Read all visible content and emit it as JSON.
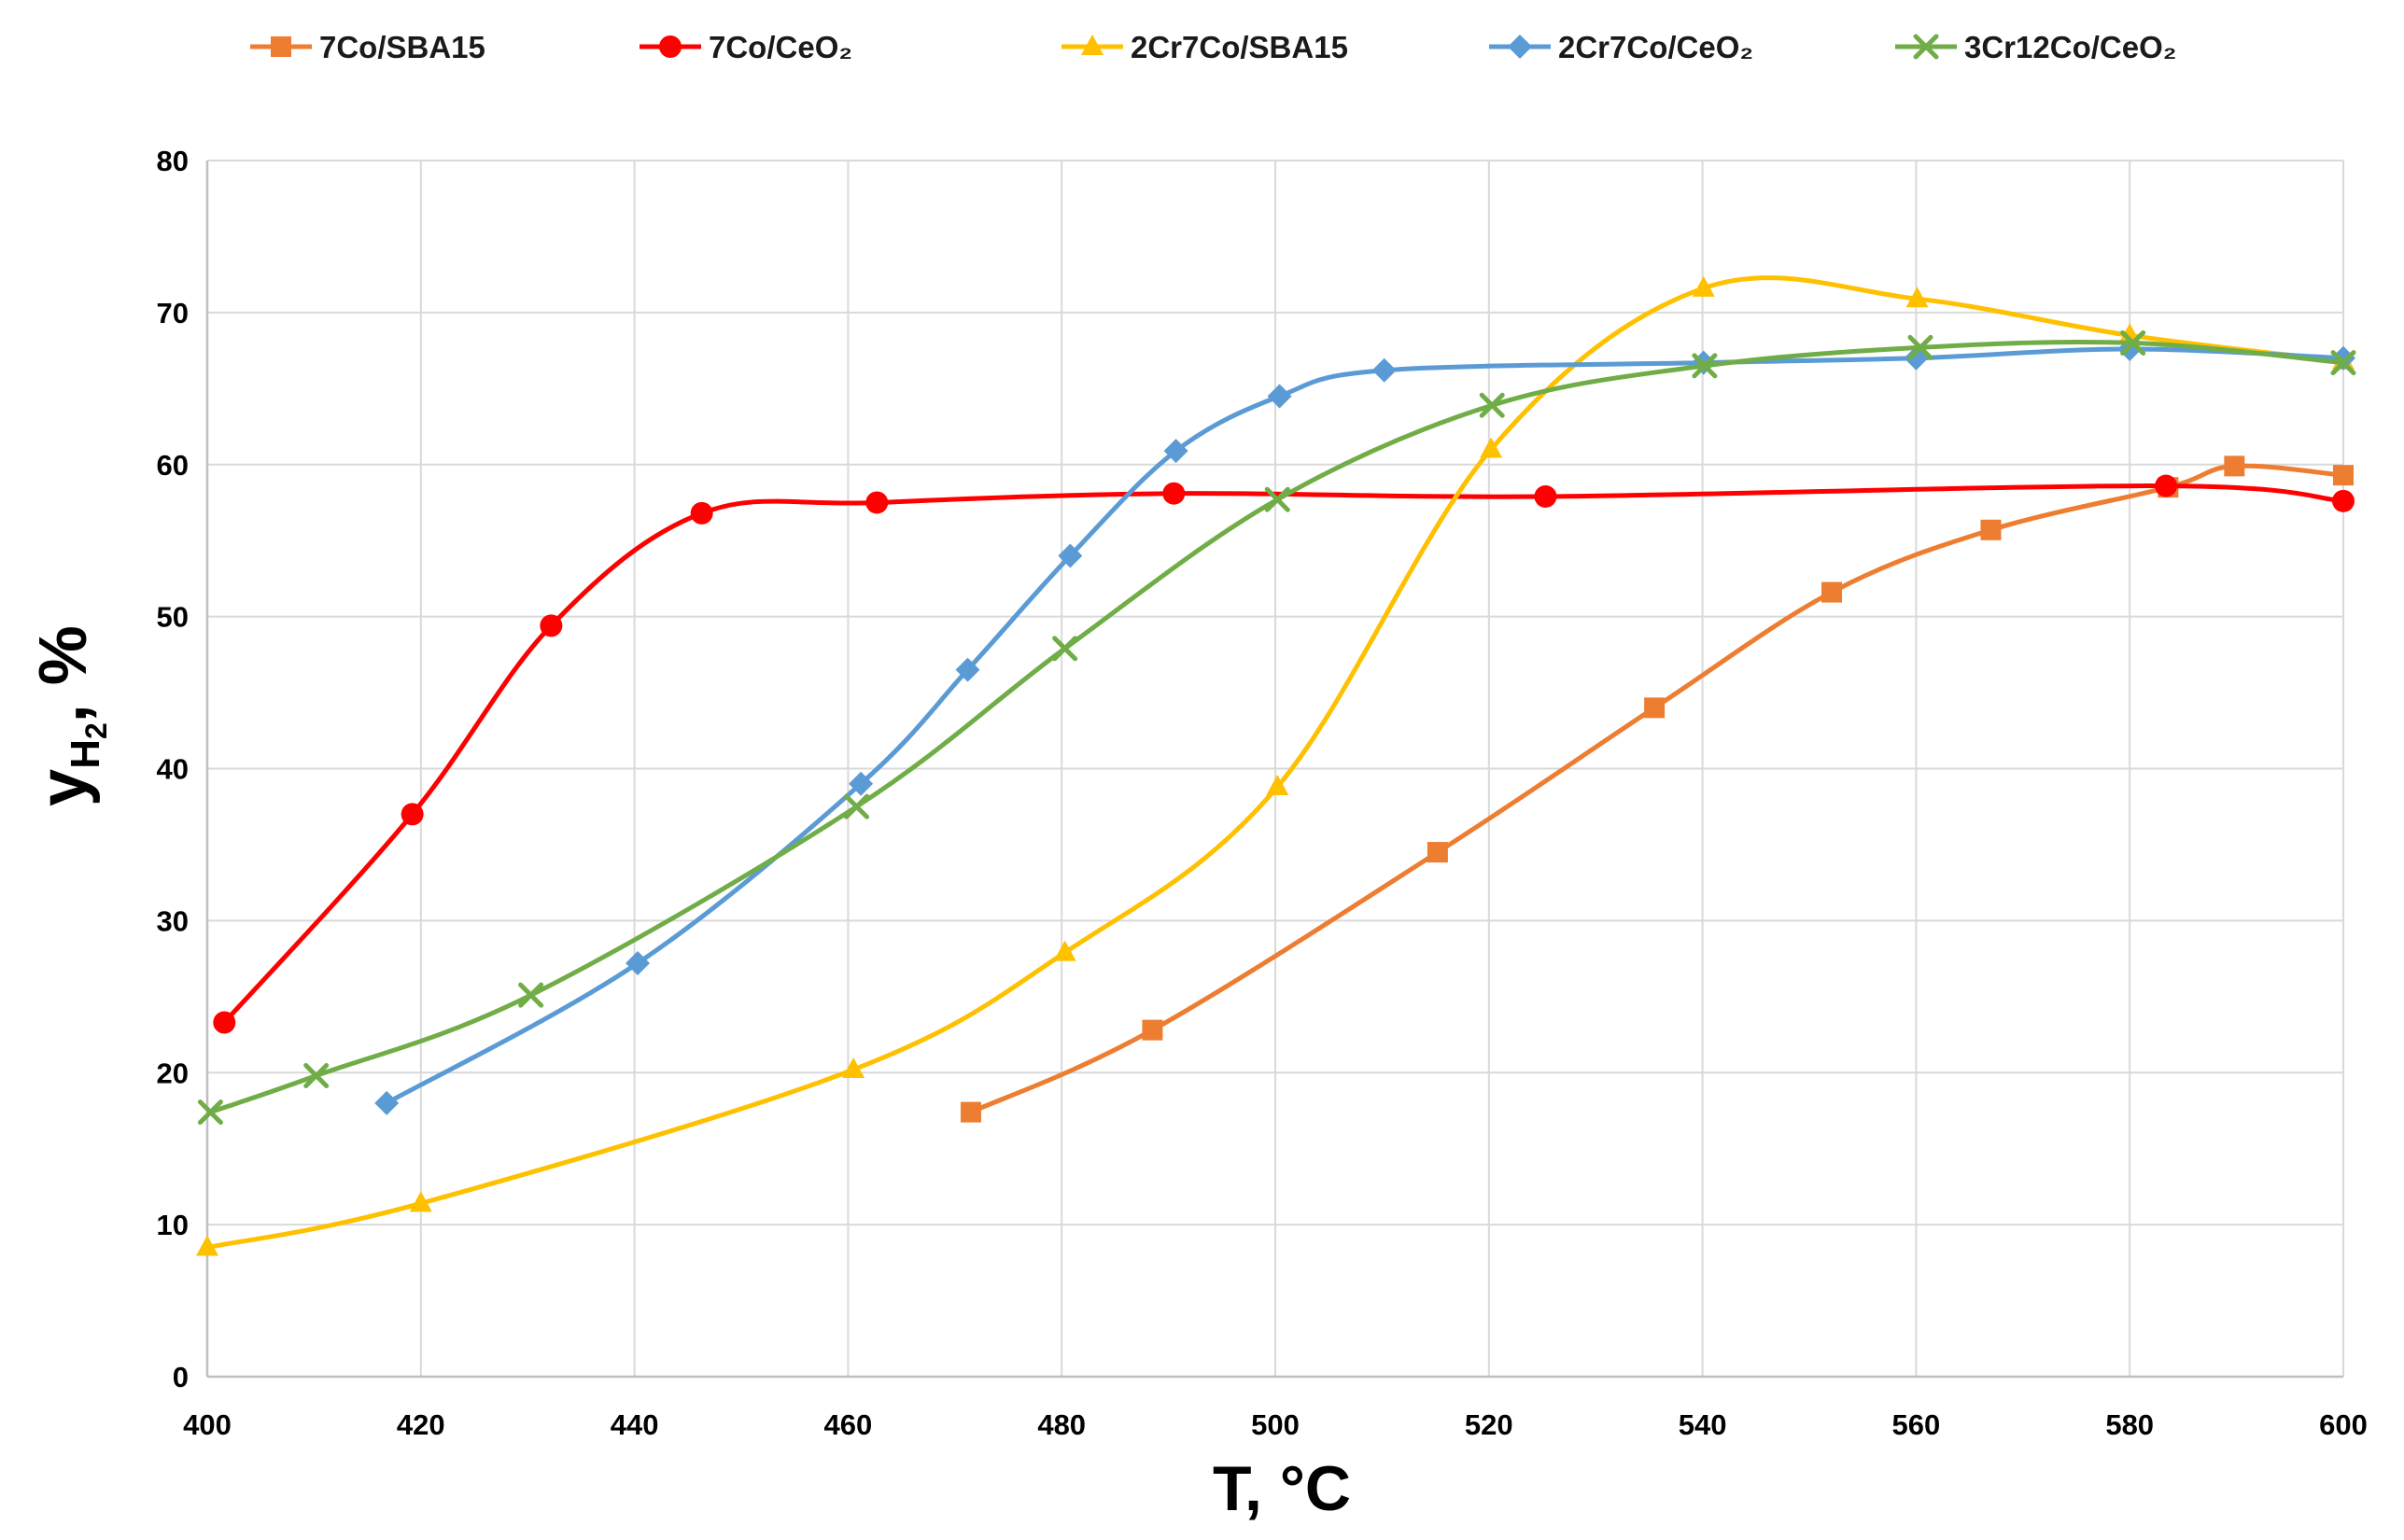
{
  "chart_data": {
    "type": "line",
    "title": "",
    "xlabel": "T, °C",
    "ylabel": {
      "main": "y",
      "sub": "H",
      "subsub": "2",
      "suffix": ", %"
    },
    "xlim": [
      400,
      600
    ],
    "ylim": [
      0,
      80
    ],
    "xticks": [
      400,
      420,
      440,
      460,
      480,
      500,
      520,
      540,
      560,
      580,
      600
    ],
    "yticks": [
      0,
      10,
      20,
      30,
      40,
      50,
      60,
      70,
      80
    ],
    "grid": true,
    "legend_position": "top",
    "series": [
      {
        "name": "7Co/SBA15",
        "color": "#ED7D31",
        "marker": "square",
        "x": [
          471.5,
          488.5,
          515.2,
          535.5,
          552.1,
          567.0,
          583.6,
          589.8,
          600.0
        ],
        "y": [
          17.4,
          22.8,
          34.5,
          44.0,
          51.6,
          55.7,
          58.5,
          59.9,
          59.3
        ]
      },
      {
        "name": "7Co/CeO₂",
        "color": "#FF0000",
        "marker": "circle",
        "x": [
          401.6,
          419.2,
          432.2,
          446.3,
          462.7,
          490.5,
          525.3,
          583.4,
          600.0
        ],
        "y": [
          23.3,
          37.0,
          49.4,
          56.8,
          57.5,
          58.1,
          57.9,
          58.6,
          57.6
        ]
      },
      {
        "name": "2Cr7Co/SBA15",
        "color": "#FFC000",
        "marker": "triangle",
        "x": [
          400.0,
          420.0,
          460.5,
          480.3,
          500.2,
          520.2,
          540.1,
          560.1,
          580.0,
          600.0
        ],
        "y": [
          8.5,
          11.4,
          20.2,
          27.9,
          38.8,
          61.0,
          71.6,
          70.9,
          68.5,
          66.8
        ]
      },
      {
        "name": "2Cr7Co/CeO₂",
        "color": "#5B9BD5",
        "marker": "diamond",
        "x": [
          416.8,
          440.3,
          461.2,
          471.2,
          480.8,
          490.7,
          500.4,
          510.2,
          540.1,
          560.0,
          580.0,
          600.0
        ],
        "y": [
          18.0,
          27.2,
          39.0,
          46.5,
          54.0,
          60.9,
          64.5,
          66.2,
          66.7,
          67.0,
          67.6,
          67.0
        ]
      },
      {
        "name": "3Cr12Co/CeO₂",
        "color": "#70AD47",
        "marker": "x",
        "x": [
          400.3,
          410.2,
          430.3,
          460.8,
          480.3,
          500.2,
          520.3,
          540.2,
          560.4,
          580.3,
          600.0
        ],
        "y": [
          17.4,
          19.8,
          25.1,
          37.5,
          47.9,
          57.7,
          63.9,
          66.5,
          67.7,
          68.0,
          66.7
        ]
      }
    ]
  }
}
